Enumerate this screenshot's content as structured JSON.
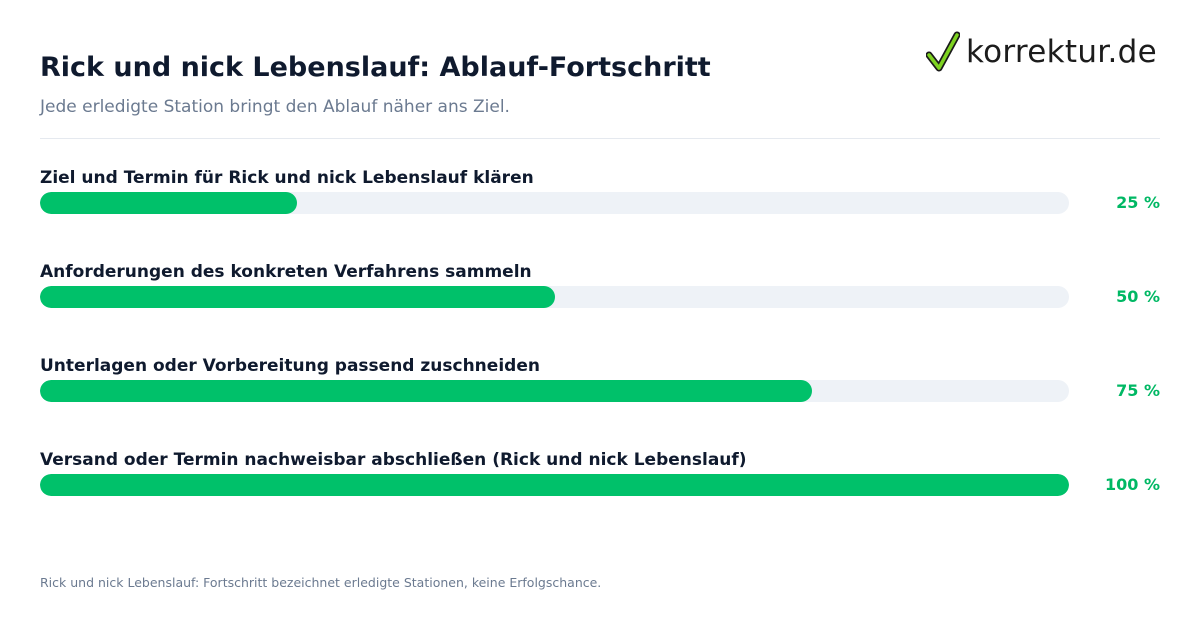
{
  "header": {
    "title": "Rick und nick Lebenslauf: Ablauf-Fortschritt",
    "subtitle": "Jede erledigte Station bringt den Ablauf näher ans Ziel."
  },
  "logo": {
    "text": "korrektur.de",
    "icon": "checkmark-icon"
  },
  "colors": {
    "accent": "#00c16a",
    "track": "#eef2f7",
    "percent_text": "#00b864",
    "title_text": "#0f1a2e",
    "muted_text": "#6b7a90"
  },
  "chart_data": {
    "type": "bar",
    "orientation": "horizontal",
    "categories": [
      "Ziel und Termin für Rick und nick Lebenslauf klären",
      "Anforderungen des konkreten Verfahrens sammeln",
      "Unterlagen oder Vorbereitung passend zuschneiden",
      "Versand oder Termin nachweisbar abschließen (Rick und nick Lebenslauf)"
    ],
    "values": [
      25,
      50,
      75,
      100
    ],
    "value_labels": [
      "25 %",
      "50 %",
      "75 %",
      "100 %"
    ],
    "xlim": [
      0,
      100
    ],
    "grid": false
  },
  "footnote": "Rick und nick Lebenslauf: Fortschritt bezeichnet erledigte Stationen, keine Erfolgschance."
}
